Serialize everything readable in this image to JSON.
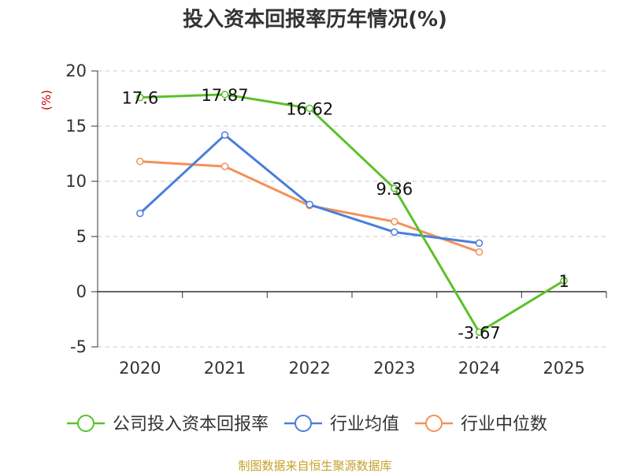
{
  "chart_data": {
    "type": "line",
    "title": "投入资本回报率历年情况(%)",
    "unit_label": "(%)",
    "categories": [
      "2020",
      "2021",
      "2022",
      "2023",
      "2024",
      "2025"
    ],
    "ylim": [
      -5,
      20
    ],
    "yticks": [
      -5,
      0,
      5,
      10,
      15,
      20
    ],
    "grid": true,
    "legend_position": "bottom",
    "series": [
      {
        "name": "公司投入资本回报率",
        "color": "#5bc12a",
        "values": [
          17.6,
          17.87,
          16.62,
          9.36,
          -3.67,
          1
        ],
        "labels": [
          "17.6",
          "17.87",
          "16.62",
          "9.36",
          "-3.67",
          "1"
        ]
      },
      {
        "name": "行业均值",
        "color": "#4a7fdb",
        "values": [
          7.1,
          14.2,
          7.9,
          5.4,
          4.4,
          null
        ]
      },
      {
        "name": "行业中位数",
        "color": "#f5905a",
        "values": [
          11.8,
          11.35,
          7.8,
          6.35,
          3.6,
          null
        ]
      }
    ],
    "source": "制图数据来自恒生聚源数据库"
  }
}
